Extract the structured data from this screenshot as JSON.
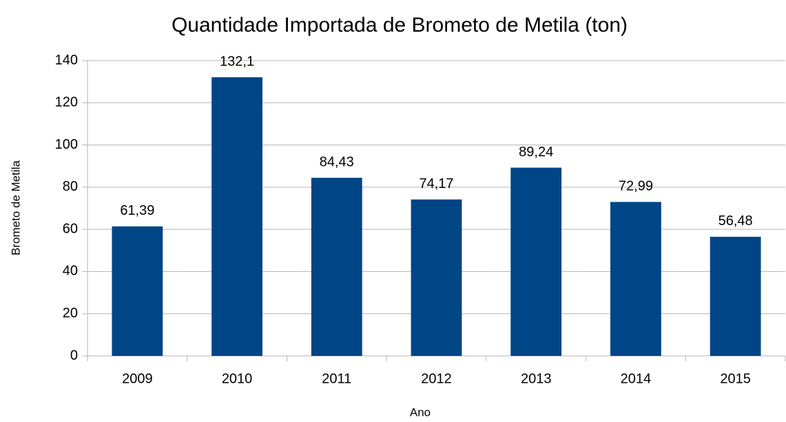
{
  "chart_data": {
    "type": "bar",
    "title": "Quantidade Importada de Brometo de Metila (ton)",
    "x_label": "Ano",
    "y_label": "Brometo de Metila",
    "categories": [
      "2009",
      "2010",
      "2011",
      "2012",
      "2013",
      "2014",
      "2015"
    ],
    "values": [
      61.39,
      132.1,
      84.43,
      74.17,
      89.24,
      72.99,
      56.48
    ],
    "value_labels": [
      "61,39",
      "132,1",
      "84,43",
      "74,17",
      "89,24",
      "72,99",
      "56,48"
    ],
    "color": "#004586",
    "ylim": [
      0,
      140
    ],
    "yticks": [
      0,
      20,
      40,
      60,
      80,
      100,
      120,
      140
    ],
    "grid": true
  }
}
